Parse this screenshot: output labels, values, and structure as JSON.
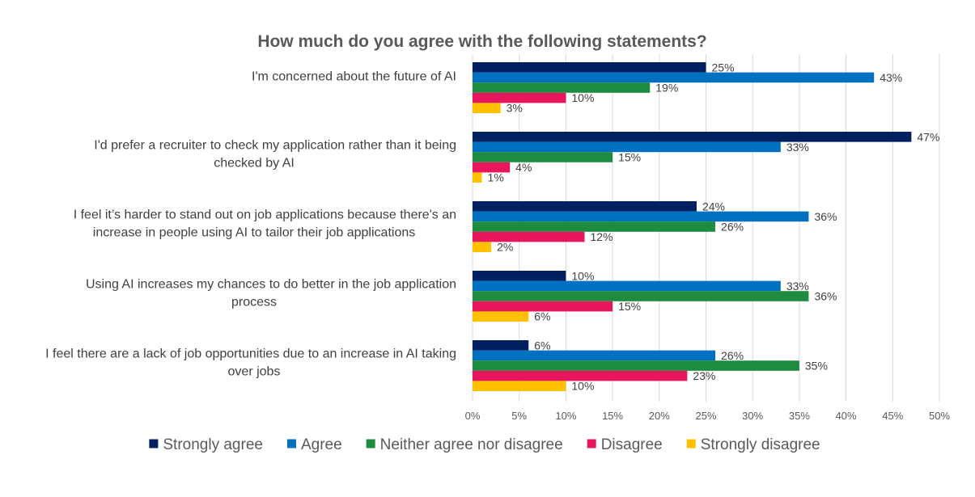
{
  "chart_data": {
    "type": "bar",
    "orientation": "horizontal",
    "title": "How much do you agree with the following statements?",
    "categories": [
      [
        "I'm concerned about the future of AI"
      ],
      [
        "I'd prefer a recruiter to check my application rather than it being",
        "checked by AI"
      ],
      [
        "I feel it’s harder to stand out on job applications because there's an",
        "increase in people using AI to tailor their job applications"
      ],
      [
        "Using AI increases my chances to do better in the job application",
        "process"
      ],
      [
        "I feel there are a lack of job opportunities due to an increase in AI taking",
        "over jobs"
      ]
    ],
    "series": [
      {
        "name": "Strongly agree",
        "color": "#002060",
        "values": [
          25,
          47,
          24,
          10,
          6
        ]
      },
      {
        "name": "Agree",
        "color": "#0070C0",
        "values": [
          43,
          33,
          36,
          33,
          26
        ]
      },
      {
        "name": "Neither agree nor disagree",
        "color": "#1E8C3E",
        "values": [
          19,
          15,
          26,
          36,
          35
        ]
      },
      {
        "name": "Disagree",
        "color": "#E8175D",
        "values": [
          10,
          4,
          12,
          15,
          23
        ]
      },
      {
        "name": "Strongly disagree",
        "color": "#FFC000",
        "values": [
          3,
          1,
          2,
          6,
          10
        ]
      }
    ],
    "xlim": [
      0,
      50
    ],
    "xticks": [
      "0%",
      "5%",
      "10%",
      "15%",
      "20%",
      "25%",
      "30%",
      "35%",
      "40%",
      "45%",
      "50%"
    ],
    "value_suffix": "%",
    "grid": true,
    "legend_position": "bottom"
  }
}
